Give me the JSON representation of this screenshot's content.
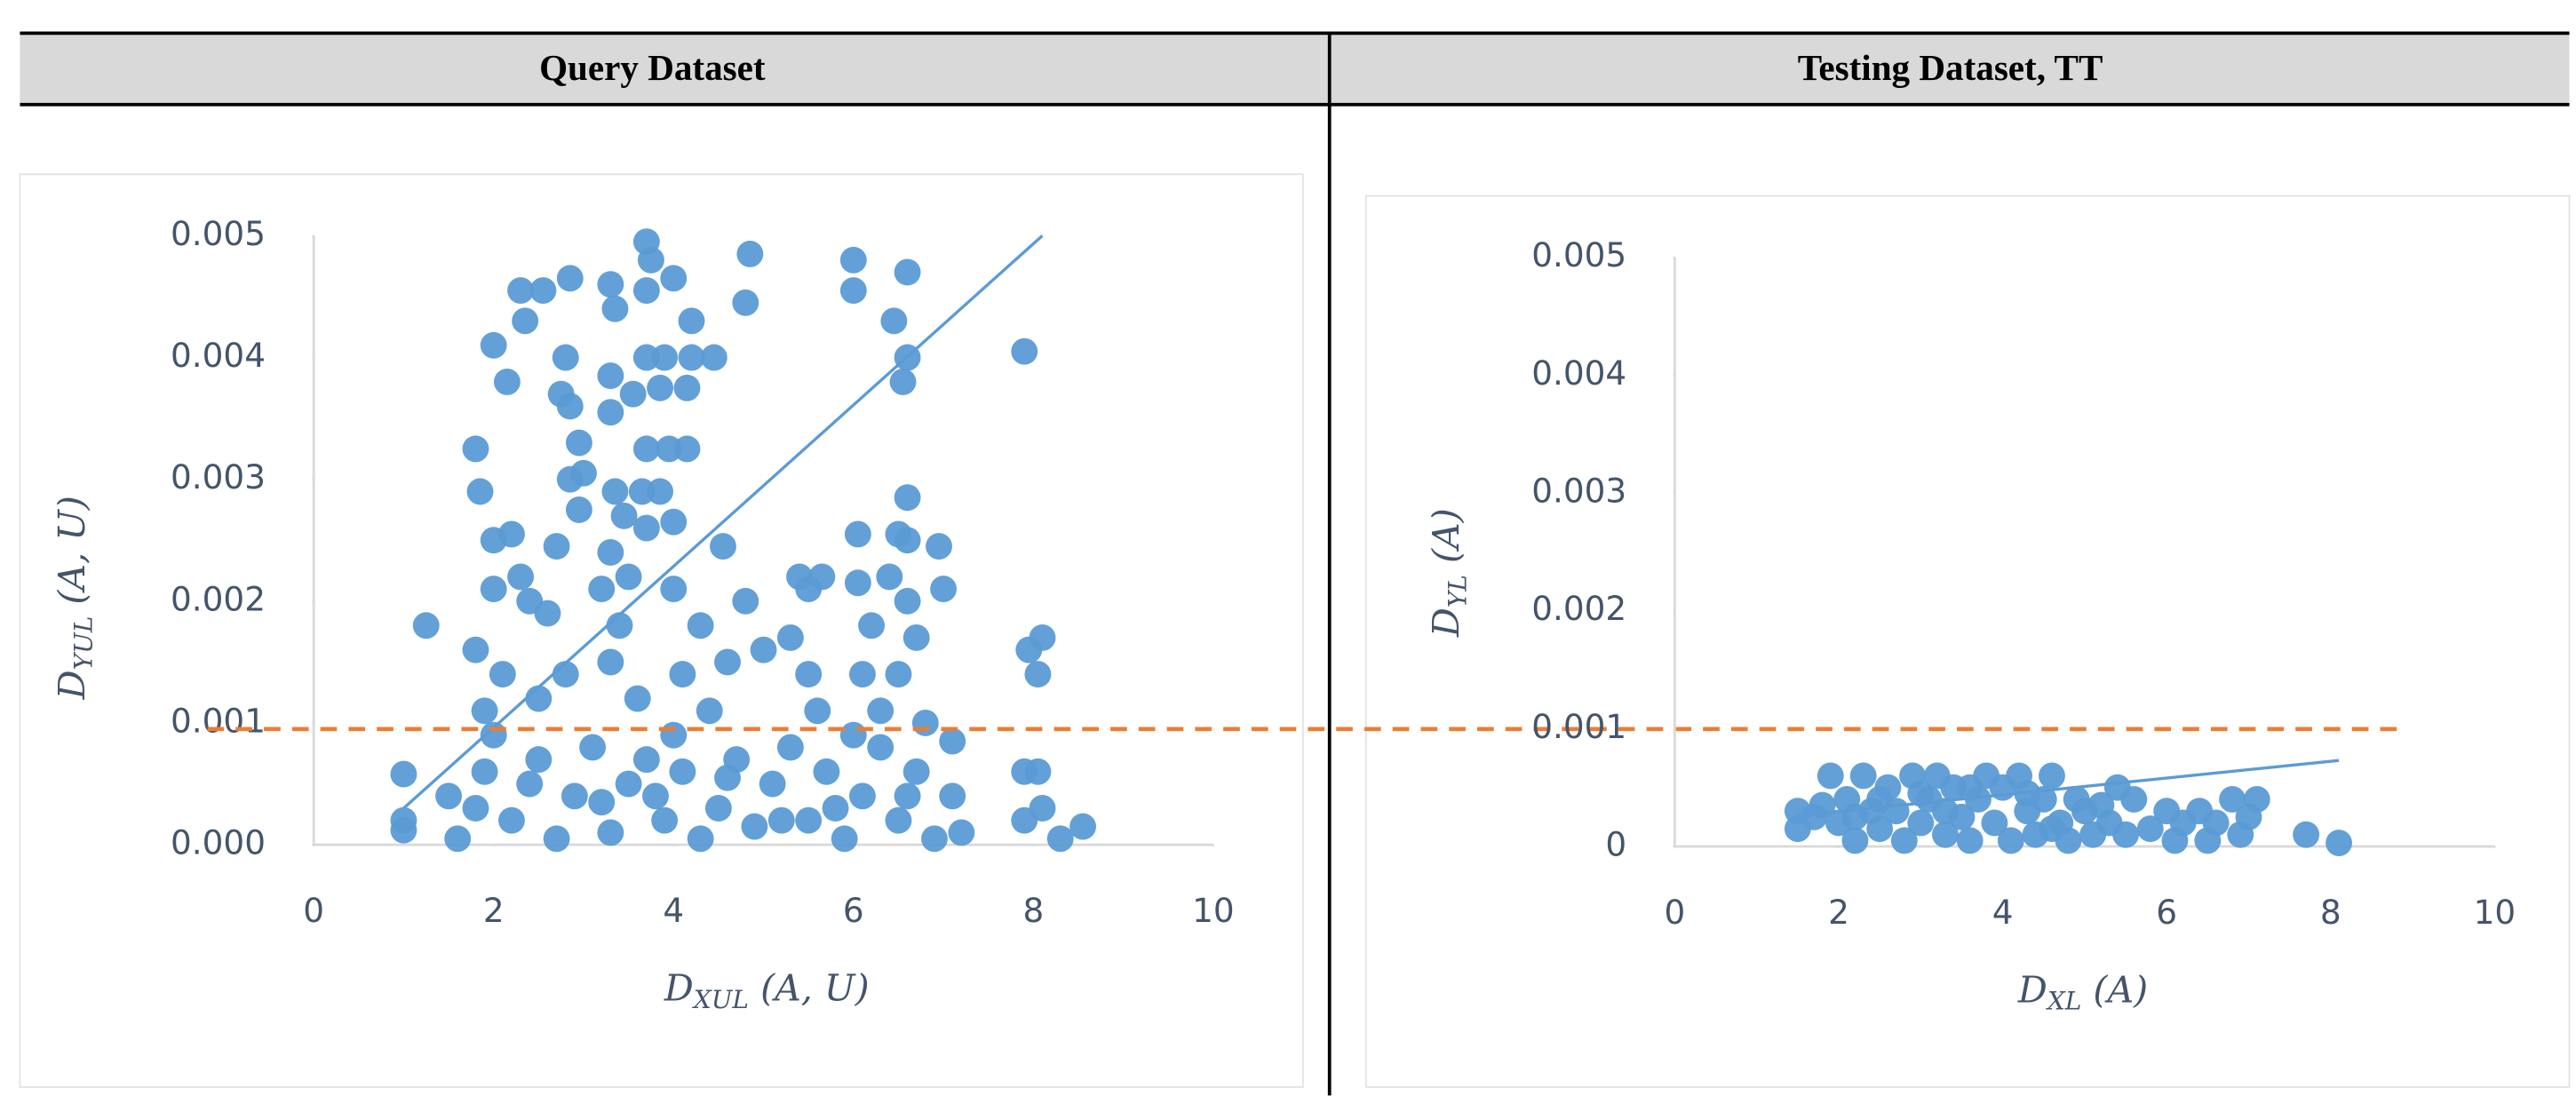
{
  "chart_data": [
    {
      "type": "scatter",
      "title": "Query Dataset",
      "color": "#5b9bd5",
      "xlabel": [
        "D",
        "XUL",
        " (A, U)"
      ],
      "ylabel": [
        "D",
        "YUL",
        " (A, U)"
      ],
      "xlim": [
        0,
        10
      ],
      "ylim": [
        0,
        0.005
      ],
      "xticks": [
        0,
        2,
        4,
        6,
        8,
        10
      ],
      "yticks": [
        {
          "value": 0,
          "label": "0.000"
        },
        {
          "value": 0.001,
          "label": "0.001"
        },
        {
          "value": 0.002,
          "label": "0.002"
        },
        {
          "value": 0.003,
          "label": "0.003"
        },
        {
          "value": 0.004,
          "label": "0.004"
        },
        {
          "value": 0.005,
          "label": "0.005"
        }
      ],
      "trendline": {
        "x": [
          1,
          8.1
        ],
        "y": [
          0.0003,
          0.005
        ]
      },
      "hline": {
        "value": 0.00095,
        "color": "#ed7d31"
      },
      "x": [
        3.7,
        3.75,
        4.85,
        6.0,
        6.6,
        2.3,
        2.55,
        2.85,
        3.3,
        3.35,
        3.7,
        4.0,
        4.8,
        6.0,
        6.45,
        2.35,
        4.2,
        2.0,
        2.8,
        3.7,
        3.9,
        4.45,
        4.2,
        6.6,
        7.9,
        2.15,
        3.3,
        2.75,
        3.55,
        3.85,
        4.15,
        6.55,
        3.3,
        2.85,
        2.95,
        1.8,
        3.7,
        3.95,
        4.15,
        2.85,
        3.0,
        1.85,
        3.35,
        3.65,
        3.85,
        6.6,
        2.95,
        3.45,
        4.0,
        3.7,
        2.0,
        2.2,
        6.05,
        6.5,
        6.95,
        2.7,
        3.3,
        4.55,
        6.6,
        2.3,
        3.5,
        5.4,
        5.65,
        6.05,
        6.4,
        7.0,
        1.25,
        2.0,
        2.4,
        3.2,
        4.0,
        4.8,
        5.5,
        6.6,
        1.8,
        2.6,
        3.4,
        4.3,
        5.0,
        5.3,
        6.2,
        6.7,
        7.95,
        8.1,
        8.05,
        2.1,
        2.8,
        3.3,
        4.1,
        4.6,
        5.5,
        6.1,
        6.5,
        1.9,
        2.5,
        3.6,
        4.4,
        5.6,
        6.3,
        6.8,
        1.0,
        1.0,
        1.0,
        1.5,
        1.6,
        1.9,
        2.2,
        2.5,
        2.7,
        2.9,
        3.1,
        3.3,
        3.5,
        3.7,
        3.9,
        4.1,
        4.3,
        4.5,
        4.7,
        4.9,
        5.1,
        5.3,
        5.5,
        5.7,
        5.9,
        6.1,
        6.3,
        6.5,
        6.7,
        6.9,
        7.1,
        7.2,
        7.9,
        8.05,
        7.9,
        8.1,
        8.3,
        8.55,
        2.0,
        4.0,
        6.0,
        7.1,
        1.8,
        2.4,
        3.2,
        3.8,
        4.6,
        5.2,
        5.8,
        6.6
      ],
      "y": [
        0.00495,
        0.0048,
        0.00485,
        0.0048,
        0.0047,
        0.00455,
        0.00455,
        0.00465,
        0.0046,
        0.0044,
        0.00455,
        0.00465,
        0.00445,
        0.00455,
        0.0043,
        0.0043,
        0.0043,
        0.0041,
        0.004,
        0.004,
        0.004,
        0.004,
        0.004,
        0.004,
        0.00405,
        0.0038,
        0.00385,
        0.0037,
        0.0037,
        0.00375,
        0.00375,
        0.0038,
        0.00355,
        0.0036,
        0.0033,
        0.00325,
        0.00325,
        0.00325,
        0.00325,
        0.003,
        0.00305,
        0.0029,
        0.0029,
        0.0029,
        0.0029,
        0.00285,
        0.00275,
        0.0027,
        0.00265,
        0.0026,
        0.0025,
        0.00255,
        0.00255,
        0.00255,
        0.00245,
        0.00245,
        0.0024,
        0.00245,
        0.0025,
        0.0022,
        0.0022,
        0.0022,
        0.0022,
        0.00215,
        0.0022,
        0.0021,
        0.0018,
        0.0021,
        0.002,
        0.0021,
        0.0021,
        0.002,
        0.0021,
        0.002,
        0.0016,
        0.0019,
        0.0018,
        0.0018,
        0.0016,
        0.0017,
        0.0018,
        0.0017,
        0.0016,
        0.0017,
        0.0014,
        0.0014,
        0.0014,
        0.0015,
        0.0014,
        0.0015,
        0.0014,
        0.0014,
        0.0014,
        0.0011,
        0.0012,
        0.0012,
        0.0011,
        0.0011,
        0.0011,
        0.001,
        0.00058,
        0.0002,
        0.00012,
        0.0004,
        5e-05,
        0.0006,
        0.0002,
        0.0007,
        5e-05,
        0.0004,
        0.0008,
        0.0001,
        0.0005,
        0.0007,
        0.0002,
        0.0006,
        5e-05,
        0.0003,
        0.0007,
        0.00015,
        0.0005,
        0.0008,
        0.0002,
        0.0006,
        5e-05,
        0.0004,
        0.0008,
        0.0002,
        0.0006,
        5e-05,
        0.0004,
        0.0001,
        0.0006,
        0.0006,
        0.0002,
        0.0003,
        5e-05,
        0.00015,
        0.0009,
        0.0009,
        0.0009,
        0.00085,
        0.0003,
        0.0005,
        0.00035,
        0.0004,
        0.00055,
        0.0002,
        0.0003,
        0.0004
      ]
    },
    {
      "type": "scatter",
      "title": "Testing Dataset, TT",
      "color": "#5b9bd5",
      "xlabel": [
        "D",
        "XL",
        " (A)"
      ],
      "ylabel": [
        "D",
        "YL",
        " (A)"
      ],
      "xlim": [
        0,
        10
      ],
      "ylim": [
        0,
        0.005
      ],
      "xticks": [
        0,
        2,
        4,
        6,
        8,
        10
      ],
      "yticks": [
        0,
        0.001,
        0.002,
        0.003,
        0.004,
        0.005
      ],
      "trendline": {
        "x": [
          1.5,
          8.1
        ],
        "y": [
          0.00026,
          0.00073
        ]
      },
      "x": [
        1.5,
        1.5,
        1.7,
        1.9,
        2.0,
        2.1,
        2.2,
        2.3,
        2.4,
        2.5,
        2.6,
        2.7,
        2.8,
        2.9,
        3.0,
        3.1,
        3.2,
        3.3,
        3.4,
        3.5,
        3.6,
        3.7,
        3.8,
        3.9,
        4.0,
        4.1,
        4.2,
        4.3,
        4.4,
        4.5,
        4.6,
        4.7,
        4.8,
        4.9,
        5.0,
        5.1,
        5.2,
        5.4,
        5.5,
        5.6,
        5.8,
        6.0,
        6.1,
        6.2,
        6.4,
        6.5,
        6.6,
        6.8,
        6.9,
        7.0,
        7.1,
        7.7,
        8.1,
        3.0,
        3.6,
        4.3,
        2.5,
        5.3,
        1.8,
        2.2,
        3.3,
        4.6
      ],
      "y": [
        0.0003,
        0.00015,
        0.00025,
        0.0006,
        0.0002,
        0.0004,
        5e-05,
        0.0006,
        0.0003,
        0.00015,
        0.0005,
        0.0003,
        5e-05,
        0.0006,
        0.0002,
        0.0004,
        0.0006,
        0.0001,
        0.0005,
        0.00025,
        5e-05,
        0.0004,
        0.0006,
        0.0002,
        0.0005,
        5e-05,
        0.0006,
        0.0003,
        0.0001,
        0.0004,
        0.0006,
        0.0002,
        5e-05,
        0.0004,
        0.0003,
        0.0001,
        0.00035,
        0.0005,
        0.0001,
        0.0004,
        0.00015,
        0.0003,
        5e-05,
        0.0002,
        0.0003,
        5e-05,
        0.0002,
        0.0004,
        0.0001,
        0.00025,
        0.0004,
        0.0001,
        3e-05,
        0.00045,
        0.0005,
        0.00045,
        0.0004,
        0.0002,
        0.00035,
        0.00025,
        0.0003,
        0.00015
      ]
    }
  ]
}
